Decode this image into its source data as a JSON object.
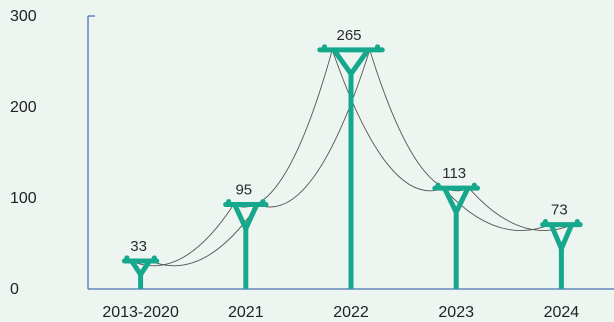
{
  "chart_data": {
    "type": "bar",
    "categories": [
      "2013-2020",
      "2021",
      "2022",
      "2023",
      "2024"
    ],
    "values": [
      33,
      95,
      265,
      113,
      73
    ],
    "data_labels": [
      "33",
      "95",
      "265",
      "113",
      "73"
    ],
    "y_ticks": [
      "0",
      "100",
      "200",
      "300"
    ],
    "ylim": [
      0,
      300
    ],
    "grid": false,
    "legend": "none",
    "colors": {
      "bar": "#15a88c",
      "axis": "#4a73b5",
      "wire": "#555555",
      "background": "#ecf5f0"
    },
    "mark_style": "power-pylon"
  }
}
